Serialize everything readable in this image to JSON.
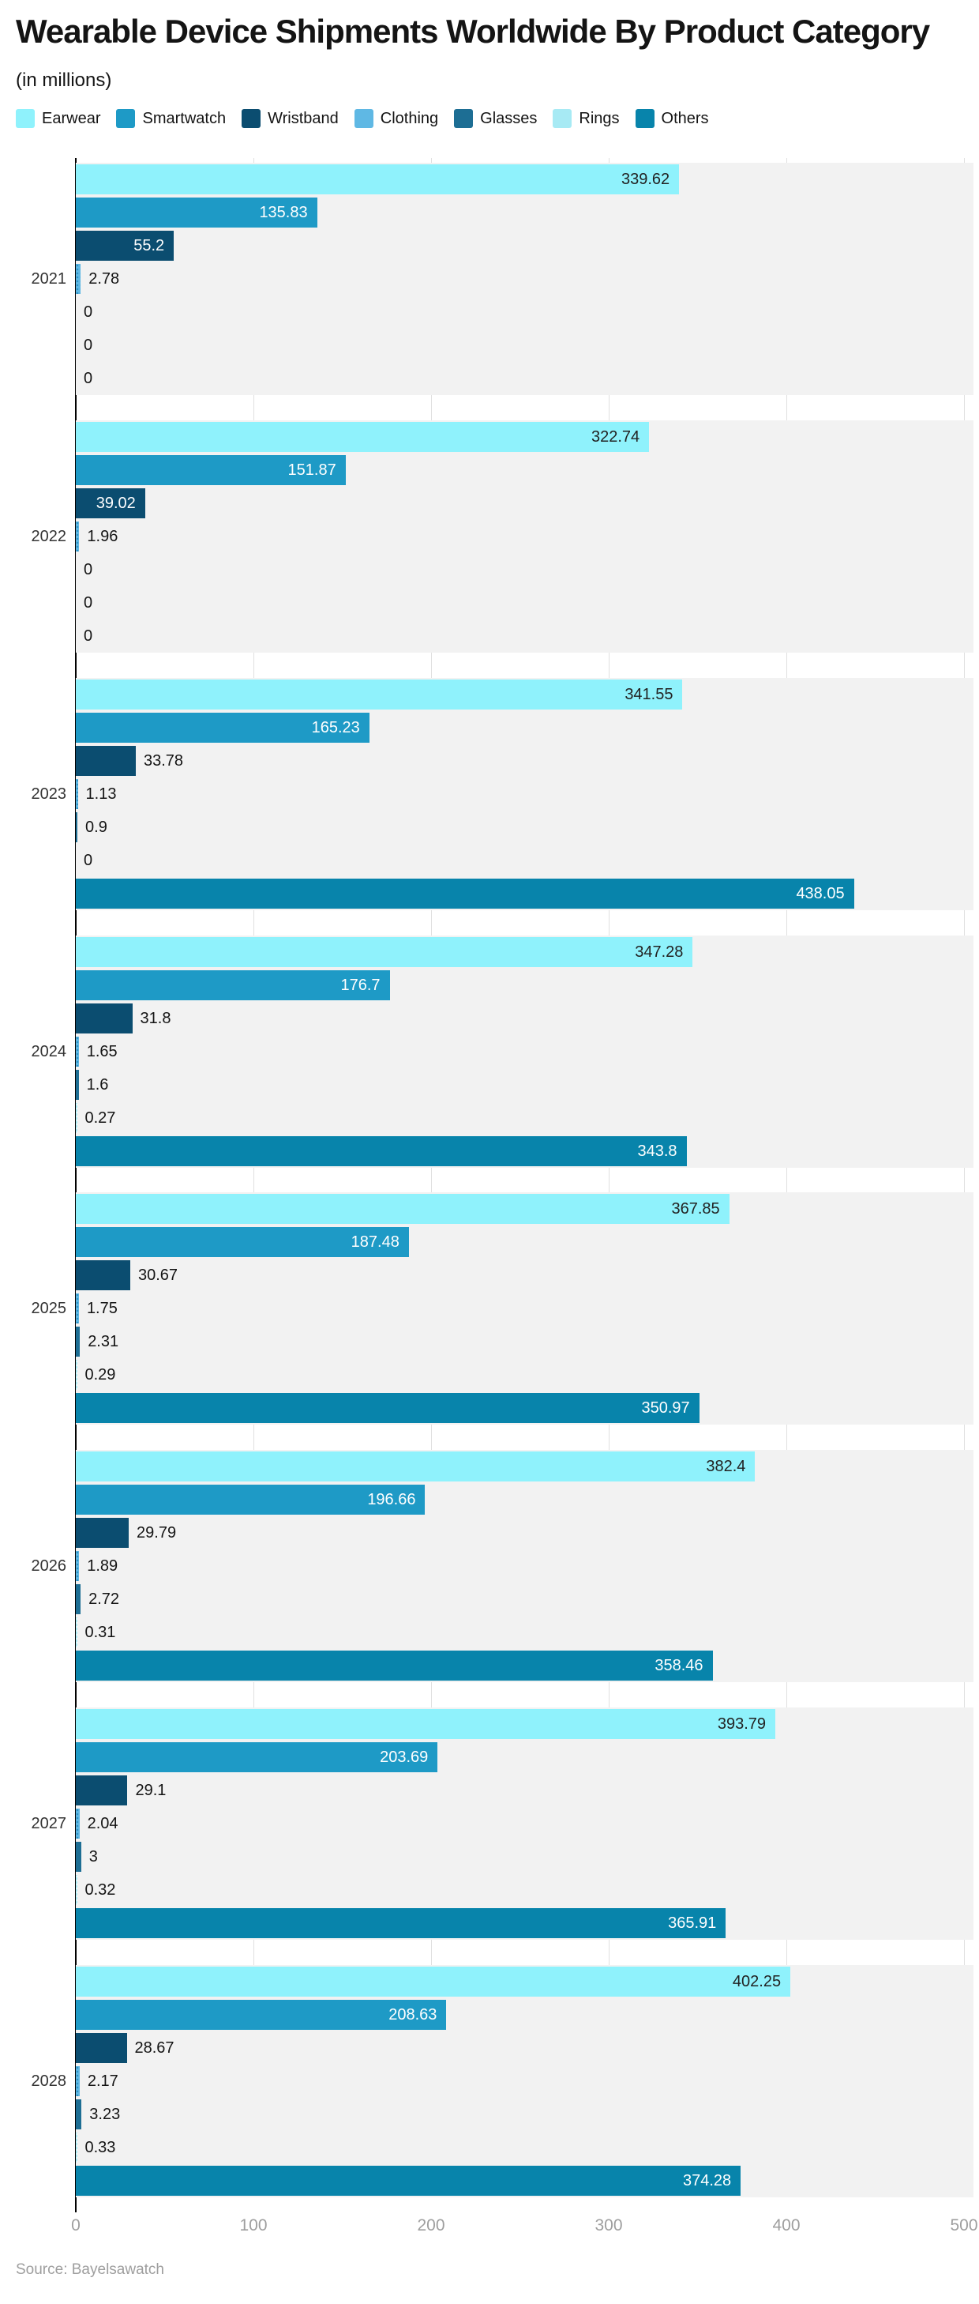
{
  "title": "Wearable Device Shipments Worldwide By Product Category",
  "subtitle": "(in millions)",
  "source": "Source: Bayelsawatch",
  "colors": {
    "background": "#ffffff",
    "band": "#f2f2f2",
    "gridline": "#e0e0e0",
    "axis_line": "#000000",
    "axis_tick_label": "#9e9e9e",
    "year_label": "#333333",
    "value_label_outside": "#141414"
  },
  "chart_data": {
    "type": "bar",
    "orientation": "horizontal",
    "title": "Wearable Device Shipments Worldwide By Product Category",
    "subtitle": "(in millions)",
    "xlabel": "",
    "ylabel": "",
    "xlim": [
      0,
      500
    ],
    "xticks": [
      0,
      100,
      200,
      300,
      400,
      500
    ],
    "grid": true,
    "legend_position": "top",
    "categories": [
      "2021",
      "2022",
      "2023",
      "2024",
      "2025",
      "2026",
      "2027",
      "2028"
    ],
    "series": [
      {
        "name": "Earwear",
        "color": "#8FF2FC",
        "pattern": "none",
        "label_inside_color": "#222222",
        "values": [
          339.62,
          322.74,
          341.55,
          347.28,
          367.85,
          382.4,
          393.79,
          402.25
        ]
      },
      {
        "name": "Smartwatch",
        "color": "#1E9AC6",
        "pattern": "none",
        "label_inside_color": "#ffffff",
        "values": [
          135.83,
          151.87,
          165.23,
          176.7,
          187.48,
          196.66,
          203.69,
          208.63
        ]
      },
      {
        "name": "Wristband",
        "color": "#0B4D70",
        "pattern": "none",
        "label_inside_color": "#ffffff",
        "values": [
          55.2,
          39.02,
          33.78,
          31.8,
          30.67,
          29.79,
          29.1,
          28.67
        ]
      },
      {
        "name": "Clothing",
        "color": "#5FB8E4",
        "pattern": "dots",
        "label_inside_color": "#222222",
        "values": [
          2.78,
          1.96,
          1.13,
          1.65,
          1.75,
          1.89,
          2.04,
          2.17
        ]
      },
      {
        "name": "Glasses",
        "color": "#1D6E94",
        "pattern": "none",
        "label_inside_color": "#ffffff",
        "values": [
          0,
          0,
          0.9,
          1.6,
          2.31,
          2.72,
          3,
          3.23
        ]
      },
      {
        "name": "Rings",
        "color": "#A7EAF4",
        "pattern": "dots-light",
        "label_inside_color": "#222222",
        "values": [
          0,
          0,
          0,
          0.27,
          0.29,
          0.31,
          0.32,
          0.33
        ]
      },
      {
        "name": "Others",
        "color": "#0884AB",
        "pattern": "none",
        "label_inside_color": "#ffffff",
        "values": [
          0,
          0,
          438.05,
          343.8,
          350.97,
          358.46,
          365.91,
          374.28
        ]
      }
    ]
  }
}
